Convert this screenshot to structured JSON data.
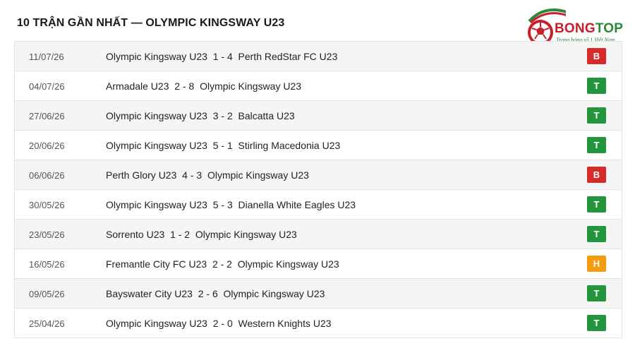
{
  "title": "10 TRẬN GẦN NHẤT — OLYMPIC KINGSWAY U23",
  "logo": {
    "name_part1": "BONG",
    "name_part2": "TOP",
    "tagline": "Trang bóng số 1 Việt Nam"
  },
  "colors": {
    "win": "#22953d",
    "loss": "#d52b2b",
    "draw": "#f39c12"
  },
  "matches": [
    {
      "date": "11/07/26",
      "home": "Olympic Kingsway U23",
      "score": "1 - 4",
      "away": "Perth RedStar FC U23",
      "result": "B"
    },
    {
      "date": "04/07/26",
      "home": "Armadale U23",
      "score": "2 - 8",
      "away": "Olympic Kingsway U23",
      "result": "T"
    },
    {
      "date": "27/06/26",
      "home": "Olympic Kingsway U23",
      "score": "3 - 2",
      "away": "Balcatta U23",
      "result": "T"
    },
    {
      "date": "20/06/26",
      "home": "Olympic Kingsway U23",
      "score": "5 - 1",
      "away": "Stirling Macedonia U23",
      "result": "T"
    },
    {
      "date": "06/06/26",
      "home": "Perth Glory U23",
      "score": "4 - 3",
      "away": "Olympic Kingsway U23",
      "result": "B"
    },
    {
      "date": "30/05/26",
      "home": "Olympic Kingsway U23",
      "score": "5 - 3",
      "away": "Dianella White Eagles U23",
      "result": "T"
    },
    {
      "date": "23/05/26",
      "home": "Sorrento U23",
      "score": "1 - 2",
      "away": "Olympic Kingsway U23",
      "result": "T"
    },
    {
      "date": "16/05/26",
      "home": "Fremantle City FC U23",
      "score": "2 - 2",
      "away": "Olympic Kingsway U23",
      "result": "H"
    },
    {
      "date": "09/05/26",
      "home": "Bayswater City U23",
      "score": "2 - 6",
      "away": "Olympic Kingsway U23",
      "result": "T"
    },
    {
      "date": "25/04/26",
      "home": "Olympic Kingsway U23",
      "score": "2 - 0",
      "away": "Western Knights U23",
      "result": "T"
    }
  ]
}
